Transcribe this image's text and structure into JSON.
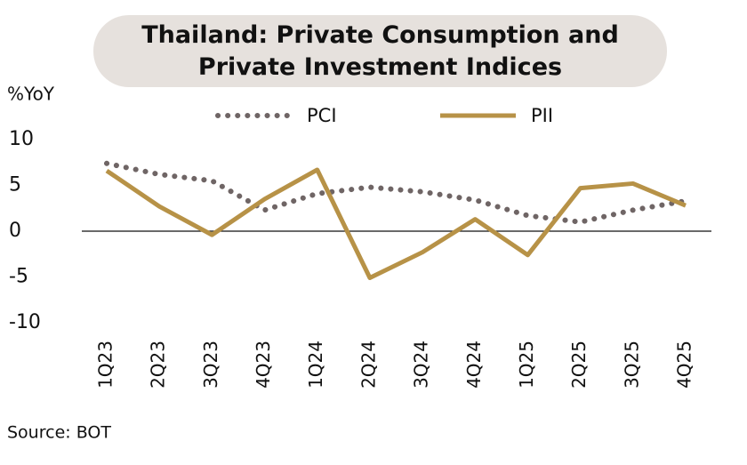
{
  "chart_data": {
    "type": "line",
    "title": "Thailand: Private Consumption and Private Investment Indices",
    "y_axis_label": "%YoY",
    "source": "Source: BOT",
    "categories": [
      "1Q23",
      "2Q23",
      "3Q23",
      "4Q23",
      "1Q24",
      "2Q24",
      "3Q24",
      "4Q24",
      "1Q25",
      "2Q25",
      "3Q25",
      "4Q25"
    ],
    "series": [
      {
        "name": "PCI",
        "color": "#6f6565",
        "style": "dotted",
        "values": [
          7.4,
          6.2,
          5.5,
          2.3,
          4.1,
          4.8,
          4.3,
          3.4,
          1.7,
          1.0,
          2.3,
          3.3
        ]
      },
      {
        "name": "PII",
        "color": "#b79247",
        "style": "solid",
        "values": [
          6.6,
          2.7,
          -0.4,
          3.5,
          6.7,
          -5.1,
          -2.3,
          1.3,
          -2.6,
          4.7,
          5.2,
          2.8
        ]
      }
    ],
    "ylim": [
      -10,
      10
    ],
    "yticks": [
      -10,
      -5,
      0,
      5,
      10
    ],
    "grid": false
  }
}
